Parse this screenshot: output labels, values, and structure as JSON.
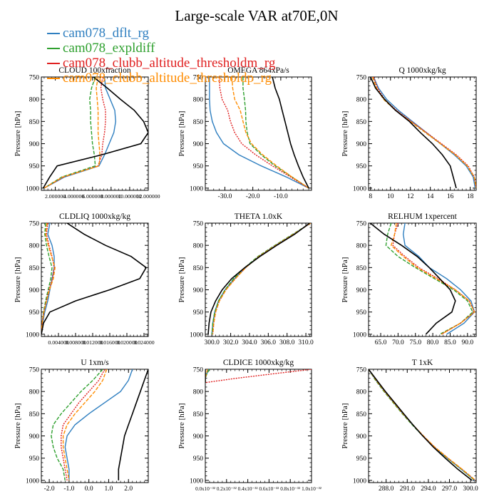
{
  "figure": {
    "title": "Large-scale VAR at70E,0N",
    "ylabel": "Pressure [hPa]"
  },
  "legend": [
    {
      "label": "cam078_dflt_rg",
      "color": "#2f7fc0"
    },
    {
      "label": "cam078_expldiff",
      "color": "#2ea02e"
    },
    {
      "label": "cam078_clubb_altitude_thresholdm_rg",
      "color": "#e02020"
    },
    {
      "label": "cam078_clubb_altitude_thresholdp_rg",
      "color": "#ff8c00"
    }
  ],
  "chart_data": [
    {
      "type": "line",
      "title": "CLOUD 100xfraction",
      "xlim": [
        0.5,
        12
      ],
      "ylim": [
        1005,
        750
      ],
      "ylabel": "Pressure [hPa]",
      "xticks": [
        2,
        4,
        6,
        8,
        10,
        12
      ],
      "xtick_labels": [
        "2.000000",
        "4.000000",
        "6.000000",
        "8.000000",
        "10.000000",
        "12.000000"
      ],
      "yticks": [
        750,
        800,
        850,
        900,
        950,
        1000
      ],
      "y": [
        750,
        775,
        800,
        825,
        850,
        875,
        900,
        925,
        950,
        975,
        1000
      ],
      "series": [
        {
          "color": "#2f7fc0",
          "values": [
            7.3,
            7.4,
            7.9,
            8.4,
            8.5,
            8.3,
            7.8,
            7.3,
            6.7,
            3.0,
            0.8
          ]
        },
        {
          "color": "#2ea02e",
          "values": [
            6.3,
            5.9,
            5.7,
            5.8,
            5.8,
            5.9,
            6.0,
            6.2,
            6.3,
            2.7,
            0.8
          ]
        },
        {
          "color": "#e02020",
          "values": [
            7.1,
            6.9,
            7.1,
            7.4,
            7.4,
            7.3,
            7.1,
            7.0,
            6.6,
            2.9,
            0.8
          ]
        },
        {
          "color": "#ff8c00",
          "values": [
            6.6,
            6.4,
            6.5,
            6.6,
            6.6,
            6.6,
            6.7,
            6.8,
            6.7,
            2.8,
            0.8
          ]
        },
        {
          "color": "#000000",
          "values": [
            6.1,
            7.6,
            9.0,
            10.5,
            11.5,
            12.0,
            11.2,
            7.0,
            2.2,
            1.4,
            0.7
          ]
        }
      ]
    },
    {
      "type": "line",
      "title": "OMEGA 864xPa/s",
      "xlim": [
        -37,
        1
      ],
      "ylim": [
        1005,
        750
      ],
      "ylabel": "Pressure [hPa]",
      "xticks": [
        -30,
        -20,
        -10
      ],
      "xtick_labels": [
        "-30.0",
        "-20.0",
        "-10.0"
      ],
      "yticks": [
        750,
        800,
        850,
        900,
        950,
        1000
      ],
      "y": [
        750,
        775,
        800,
        825,
        850,
        875,
        900,
        925,
        950,
        975,
        1000
      ],
      "series": [
        {
          "color": "#2f7fc0",
          "values": [
            -35.5,
            -35.5,
            -35.5,
            -35.3,
            -34.5,
            -33.0,
            -30.5,
            -25.0,
            -17.0,
            -8.0,
            0.0
          ]
        },
        {
          "color": "#2ea02e",
          "values": [
            -23.5,
            -23.5,
            -23.0,
            -22.6,
            -22.5,
            -22.0,
            -21.0,
            -17.0,
            -12.0,
            -6.0,
            0.0
          ]
        },
        {
          "color": "#e02020",
          "values": [
            -32.0,
            -31.8,
            -31.0,
            -29.0,
            -28.0,
            -26.5,
            -24.0,
            -19.0,
            -13.0,
            -6.5,
            0.0
          ]
        },
        {
          "color": "#ff8c00",
          "values": [
            -27.5,
            -27.2,
            -26.5,
            -24.5,
            -23.5,
            -22.5,
            -20.5,
            -16.5,
            -11.5,
            -6.0,
            0.0
          ]
        },
        {
          "color": "#000000",
          "values": [
            -13.0,
            -12.0,
            -10.5,
            -9.5,
            -8.5,
            -7.5,
            -6.5,
            -5.2,
            -3.7,
            -2.0,
            0.0
          ]
        }
      ]
    },
    {
      "type": "line",
      "title": "Q 1000xkg/kg",
      "xlim": [
        7.8,
        18.6
      ],
      "ylim": [
        1005,
        750
      ],
      "ylabel": "Pressure [hPa]",
      "xticks": [
        8,
        10,
        12,
        14,
        16,
        18
      ],
      "xtick_labels": [
        "8",
        "10",
        "12",
        "14",
        "16",
        "18"
      ],
      "yticks": [
        750,
        800,
        850,
        900,
        950,
        1000
      ],
      "y": [
        750,
        775,
        800,
        825,
        850,
        875,
        900,
        925,
        950,
        975,
        1000
      ],
      "series": [
        {
          "color": "#2f7fc0",
          "values": [
            8.3,
            8.8,
            9.6,
            10.8,
            12.2,
            13.6,
            15.0,
            16.4,
            17.6,
            18.3,
            18.5
          ]
        },
        {
          "color": "#2ea02e",
          "values": [
            8.2,
            8.6,
            9.3,
            10.5,
            12.0,
            13.5,
            15.0,
            16.5,
            17.7,
            18.4,
            18.6
          ]
        },
        {
          "color": "#e02020",
          "values": [
            8.3,
            8.7,
            9.4,
            10.6,
            12.1,
            13.6,
            15.1,
            16.6,
            17.8,
            18.4,
            18.6
          ]
        },
        {
          "color": "#ff8c00",
          "values": [
            8.2,
            8.6,
            9.3,
            10.5,
            12.0,
            13.5,
            15.0,
            16.5,
            17.7,
            18.4,
            18.6
          ]
        },
        {
          "color": "#000000",
          "values": [
            8.0,
            8.5,
            9.4,
            10.5,
            11.9,
            13.0,
            14.2,
            15.2,
            16.0,
            16.3,
            16.6
          ]
        }
      ]
    },
    {
      "type": "line",
      "title": "CLDLIQ 1000xkg/kg",
      "xlim": [
        0,
        0.025
      ],
      "ylim": [
        1005,
        750
      ],
      "ylabel": "Pressure [hPa]",
      "xticks": [
        0.004,
        0.008,
        0.012,
        0.016,
        0.02,
        0.024
      ],
      "xtick_labels": [
        "0.004000",
        "0.008000",
        "0.012000",
        "0.016000",
        "0.020000",
        "0.024000"
      ],
      "yticks": [
        750,
        800,
        850,
        900,
        950,
        1000
      ],
      "y": [
        750,
        775,
        800,
        825,
        850,
        875,
        900,
        925,
        950,
        975,
        1000
      ],
      "series": [
        {
          "color": "#2f7fc0",
          "values": [
            0.002,
            0.0015,
            0.0025,
            0.003,
            0.003,
            0.0025,
            0.002,
            0.0015,
            0.0008,
            0.0003,
            0.0
          ]
        },
        {
          "color": "#2ea02e",
          "values": [
            0.001,
            0.0008,
            0.0012,
            0.0018,
            0.0025,
            0.0022,
            0.0016,
            0.001,
            0.0005,
            0.0002,
            0.0
          ]
        },
        {
          "color": "#e02020",
          "values": [
            0.0015,
            0.0012,
            0.0018,
            0.0025,
            0.003,
            0.0026,
            0.0018,
            0.0012,
            0.0006,
            0.0002,
            0.0
          ]
        },
        {
          "color": "#ff8c00",
          "values": [
            0.0013,
            0.001,
            0.0016,
            0.0024,
            0.0032,
            0.0028,
            0.0019,
            0.0012,
            0.0006,
            0.0002,
            0.0
          ]
        },
        {
          "color": "#000000",
          "values": [
            0.006,
            0.01,
            0.015,
            0.021,
            0.0245,
            0.023,
            0.016,
            0.008,
            0.002,
            0.0005,
            0.0
          ]
        }
      ]
    },
    {
      "type": "line",
      "title": "THETA 1.0xK",
      "xlim": [
        299.3,
        310.6
      ],
      "ylim": [
        1005,
        750
      ],
      "ylabel": "Pressure [hPa]",
      "xticks": [
        300,
        302,
        304,
        306,
        308,
        310
      ],
      "xtick_labels": [
        "300.0",
        "302.0",
        "304.0",
        "306.0",
        "308.0",
        "310.0"
      ],
      "yticks": [
        750,
        800,
        850,
        900,
        950,
        1000
      ],
      "y": [
        750,
        775,
        800,
        825,
        850,
        875,
        900,
        925,
        950,
        975,
        1000
      ],
      "series": [
        {
          "color": "#2f7fc0",
          "values": [
            310.5,
            308.7,
            306.8,
            305.0,
            303.6,
            302.4,
            301.4,
            300.7,
            300.3,
            300.1,
            300.0
          ]
        },
        {
          "color": "#2ea02e",
          "values": [
            310.5,
            308.6,
            306.7,
            304.9,
            303.5,
            302.3,
            301.4,
            300.7,
            300.3,
            300.1,
            300.0
          ]
        },
        {
          "color": "#e02020",
          "values": [
            310.5,
            308.7,
            306.8,
            305.0,
            303.6,
            302.5,
            301.5,
            300.8,
            300.4,
            300.2,
            300.1
          ]
        },
        {
          "color": "#ff8c00",
          "values": [
            310.5,
            308.7,
            306.8,
            305.0,
            303.6,
            302.5,
            301.5,
            300.8,
            300.4,
            300.2,
            300.1
          ]
        },
        {
          "color": "#000000",
          "values": [
            310.4,
            308.8,
            306.9,
            305.1,
            303.5,
            302.1,
            301.1,
            300.4,
            299.9,
            299.7,
            299.6
          ]
        }
      ]
    },
    {
      "type": "line",
      "title": "RELHUM 1xpercent",
      "xlim": [
        61.5,
        92.5
      ],
      "ylim": [
        1005,
        750
      ],
      "ylabel": "Pressure [hPa]",
      "xticks": [
        65,
        70,
        75,
        80,
        85,
        90
      ],
      "xtick_labels": [
        "65.0",
        "70.0",
        "75.0",
        "80.0",
        "85.0",
        "90.0"
      ],
      "yticks": [
        750,
        800,
        850,
        900,
        950,
        1000
      ],
      "y": [
        750,
        775,
        800,
        825,
        850,
        875,
        900,
        925,
        950,
        975,
        1000
      ],
      "series": [
        {
          "color": "#2f7fc0",
          "values": [
            72.0,
            71.5,
            72.0,
            76.0,
            79.0,
            84.0,
            88.0,
            91.0,
            92.0,
            89.0,
            84.0
          ]
        },
        {
          "color": "#2ea02e",
          "values": [
            68.0,
            67.0,
            66.5,
            70.0,
            75.0,
            80.5,
            86.0,
            90.0,
            91.5,
            88.0,
            82.0
          ]
        },
        {
          "color": "#e02020",
          "values": [
            70.0,
            69.0,
            68.5,
            72.0,
            76.0,
            81.5,
            86.5,
            90.5,
            92.0,
            88.0,
            82.5
          ]
        },
        {
          "color": "#ff8c00",
          "values": [
            69.5,
            69.0,
            68.0,
            71.5,
            75.5,
            81.0,
            86.5,
            90.5,
            92.0,
            88.0,
            82.5
          ]
        },
        {
          "color": "#000000",
          "values": [
            62.0,
            66.0,
            71.0,
            75.5,
            79.0,
            82.0,
            85.0,
            86.5,
            85.5,
            81.0,
            78.0
          ]
        }
      ]
    },
    {
      "type": "line",
      "title": "U 1xm/s",
      "xlim": [
        -2.4,
        3.0
      ],
      "ylim": [
        1005,
        750
      ],
      "ylabel": "Pressure [hPa]",
      "xticks": [
        -2,
        -1,
        0,
        1,
        2
      ],
      "xtick_labels": [
        "-2.0",
        "-1.0",
        "0.0",
        "1.0",
        "2.0"
      ],
      "yticks": [
        750,
        800,
        850,
        900,
        950,
        1000
      ],
      "y": [
        750,
        775,
        800,
        825,
        850,
        875,
        900,
        925,
        950,
        975,
        1000
      ],
      "series": [
        {
          "color": "#2f7fc0",
          "values": [
            2.2,
            2.0,
            1.6,
            0.8,
            0.0,
            -0.7,
            -1.1,
            -1.2,
            -1.1,
            -1.0,
            -1.0
          ]
        },
        {
          "color": "#2ea02e",
          "values": [
            0.7,
            0.2,
            -0.4,
            -0.9,
            -1.4,
            -1.8,
            -1.9,
            -1.8,
            -1.6,
            -1.3,
            -1.2
          ]
        },
        {
          "color": "#e02020",
          "values": [
            0.8,
            0.5,
            0.0,
            -0.5,
            -0.9,
            -1.3,
            -1.4,
            -1.4,
            -1.3,
            -1.2,
            -1.1
          ]
        },
        {
          "color": "#ff8c00",
          "values": [
            0.9,
            0.7,
            0.3,
            -0.2,
            -0.7,
            -1.1,
            -1.3,
            -1.3,
            -1.2,
            -1.1,
            -1.0
          ]
        },
        {
          "color": "#000000",
          "values": [
            3.0,
            2.8,
            2.6,
            2.4,
            2.2,
            2.0,
            1.8,
            1.7,
            1.6,
            1.5,
            1.5
          ]
        }
      ]
    },
    {
      "type": "line",
      "title": "CLDICE 1000xkg/kg",
      "xlim": [
        0,
        1e-32
      ],
      "ylim": [
        1005,
        750
      ],
      "ylabel": "Pressure [hPa]",
      "xticks": [
        0,
        2e-33,
        4e-33,
        6e-33,
        8e-33,
        1e-32
      ],
      "xtick_labels": [
        "0.0x10⁻³²",
        "0.2x10⁻³²",
        "0.4x10⁻³²",
        "0.6x10⁻³²",
        "0.8x10⁻³²",
        "1.0x10⁻³²"
      ],
      "yticks": [
        750,
        800,
        850,
        900,
        950,
        1000
      ],
      "y": [
        750,
        760,
        770,
        780
      ],
      "series": [
        {
          "color": "#2f7fc0",
          "values": [
            3e-34,
            1.5e-34,
            0,
            0
          ]
        },
        {
          "color": "#2ea02e",
          "values": [
            4e-34,
            1.5e-34,
            0,
            0
          ]
        },
        {
          "color": "#e02020",
          "values": [
            1e-32,
            6.5e-33,
            3e-33,
            0
          ]
        },
        {
          "color": "#ff8c00",
          "values": [
            2e-34,
            1e-34,
            0,
            0
          ]
        },
        {
          "color": "#000000",
          "values": [
            0,
            0,
            0,
            0
          ]
        }
      ]
    },
    {
      "type": "line",
      "title": "T 1xK",
      "xlim": [
        285.5,
        300.8
      ],
      "ylim": [
        1005,
        750
      ],
      "ylabel": "Pressure [hPa]",
      "xticks": [
        288,
        291,
        294,
        297,
        300
      ],
      "xtick_labels": [
        "288.0",
        "291.0",
        "294.0",
        "297.0",
        "300.0"
      ],
      "yticks": [
        750,
        800,
        850,
        900,
        950,
        1000
      ],
      "y": [
        750,
        775,
        800,
        825,
        850,
        875,
        900,
        925,
        950,
        975,
        1000
      ],
      "series": [
        {
          "color": "#2f7fc0",
          "values": [
            285.5,
            286.6,
            287.8,
            289.1,
            290.4,
            291.8,
            293.2,
            294.8,
            296.7,
            298.7,
            300.6
          ]
        },
        {
          "color": "#2ea02e",
          "values": [
            285.5,
            286.5,
            287.7,
            289.0,
            290.3,
            291.7,
            293.2,
            294.8,
            296.7,
            298.7,
            300.6
          ]
        },
        {
          "color": "#e02020",
          "values": [
            285.5,
            286.6,
            287.8,
            289.1,
            290.4,
            291.8,
            293.3,
            294.9,
            296.8,
            298.8,
            300.7
          ]
        },
        {
          "color": "#ff8c00",
          "values": [
            285.5,
            286.6,
            287.8,
            289.1,
            290.4,
            291.8,
            293.3,
            294.9,
            296.8,
            298.8,
            300.7
          ]
        },
        {
          "color": "#000000",
          "values": [
            285.5,
            286.7,
            287.9,
            289.2,
            290.5,
            291.8,
            293.2,
            294.7,
            296.4,
            298.2,
            300.2
          ]
        }
      ]
    }
  ]
}
